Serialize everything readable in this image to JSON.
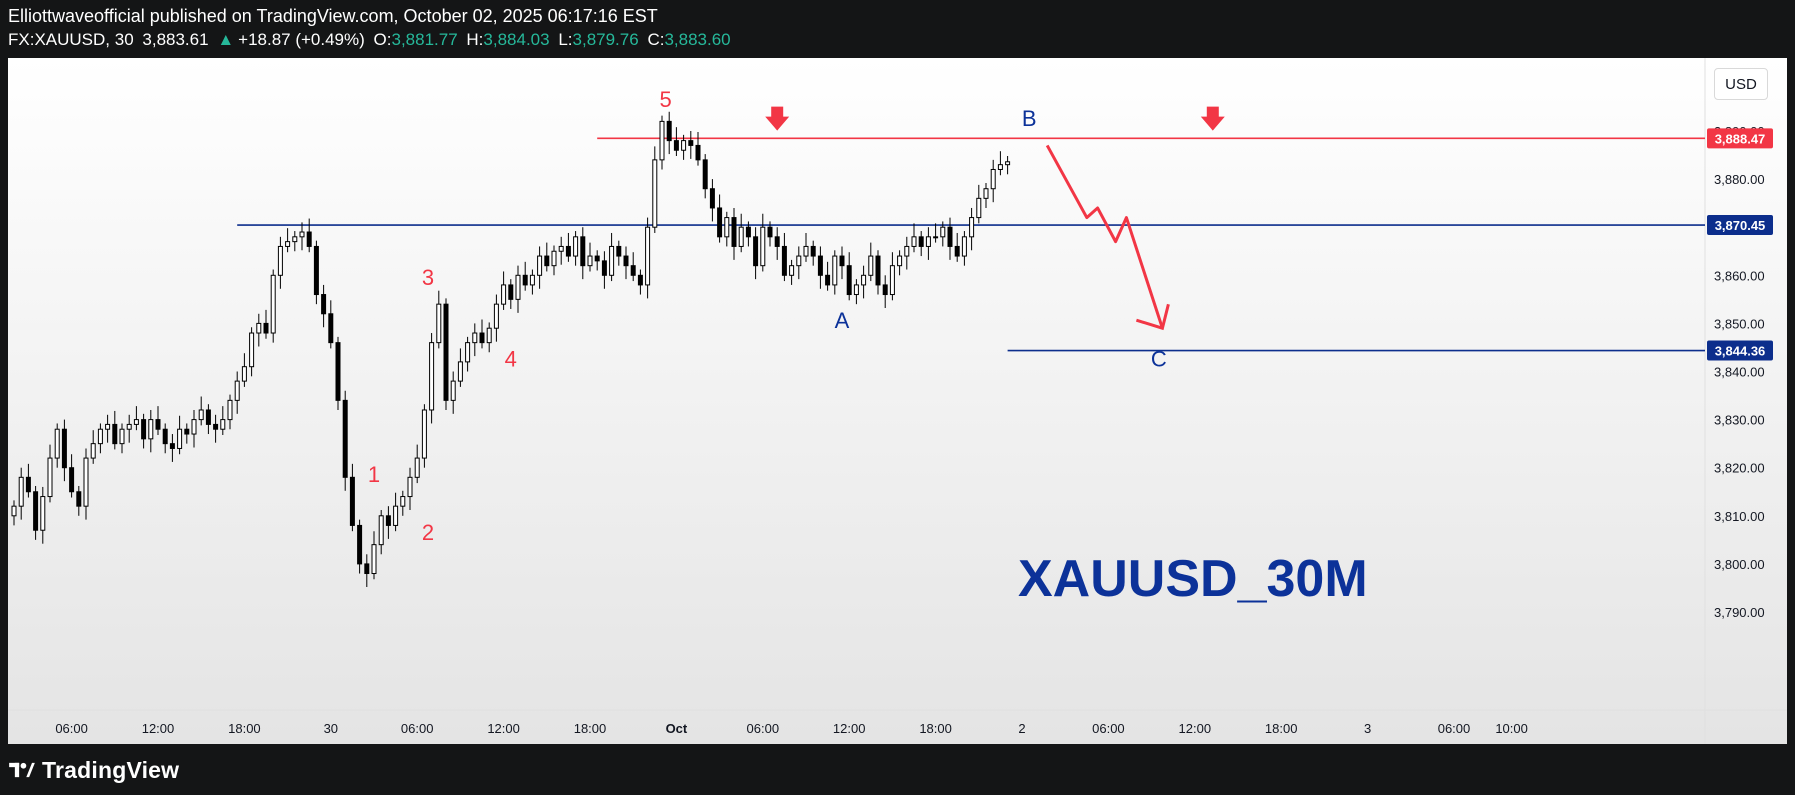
{
  "header": {
    "published_line": "Elliottwaveofficial published on TradingView.com, October 02, 2025 06:17:16 EST",
    "symbol": "FX:XAUUSD, 30",
    "last": "3,883.61",
    "arrow": "▲",
    "change": "+18.87 (+0.49%)",
    "o_label": "O:",
    "o": "3,881.77",
    "h_label": "H:",
    "h": "3,884.03",
    "l_label": "L:",
    "l": "3,879.76",
    "c_label": "C:",
    "c": "3,883.60"
  },
  "currency_button": "USD",
  "footer": {
    "brand": "TradingView"
  },
  "colors": {
    "up": "#26b89a",
    "wave_red": "#f23645",
    "wave_blue": "#0c3299",
    "line_blue": "#0c2e8c",
    "candle_body_down": "#000000",
    "candle_body_up": "#ffffff"
  },
  "chart_data": {
    "type": "candlestick",
    "title": "XAUUSD_30M",
    "ylim": [
      3788,
      3898
    ],
    "y_ticks": [
      {
        "value": 3790,
        "label": "3,790.00"
      },
      {
        "value": 3800,
        "label": "3,800.00"
      },
      {
        "value": 3810,
        "label": "3,810.00"
      },
      {
        "value": 3820,
        "label": "3,820.00"
      },
      {
        "value": 3830,
        "label": "3,830.00"
      },
      {
        "value": 3840,
        "label": "3,840.00"
      },
      {
        "value": 3850,
        "label": "3,850.00"
      },
      {
        "value": 3860,
        "label": "3,860.00"
      },
      {
        "value": 3870,
        "label": "3,870.00"
      },
      {
        "value": 3880,
        "label": "3,880.00"
      },
      {
        "value": 3890,
        "label": "3,890.00"
      }
    ],
    "x_labels": [
      {
        "label": "06:00",
        "bar": 8
      },
      {
        "label": "12:00",
        "bar": 20
      },
      {
        "label": "18:00",
        "bar": 32
      },
      {
        "label": "30",
        "bar": 44
      },
      {
        "label": "06:00",
        "bar": 56
      },
      {
        "label": "12:00",
        "bar": 68
      },
      {
        "label": "18:00",
        "bar": 80
      },
      {
        "label": "Oct",
        "bar": 92,
        "bold": true
      },
      {
        "label": "06:00",
        "bar": 104
      },
      {
        "label": "12:00",
        "bar": 116
      },
      {
        "label": "18:00",
        "bar": 128
      },
      {
        "label": "2",
        "bar": 140
      },
      {
        "label": "06:00",
        "bar": 152
      },
      {
        "label": "12:00",
        "bar": 164
      },
      {
        "label": "18:00",
        "bar": 176
      },
      {
        "label": "3",
        "bar": 188
      },
      {
        "label": "06:00",
        "bar": 200
      },
      {
        "label": "10:00",
        "bar": 208
      }
    ],
    "closes": [
      3812,
      3818,
      3815,
      3807,
      3814,
      3822,
      3828,
      3820,
      3815,
      3812,
      3822,
      3825,
      3828,
      3829,
      3825,
      3828,
      3829,
      3830,
      3826,
      3830,
      3828,
      3825,
      3824,
      3828,
      3827,
      3830,
      3832,
      3829,
      3828,
      3830,
      3834,
      3838,
      3841,
      3848,
      3850,
      3848,
      3860,
      3866,
      3867,
      3868,
      3869,
      3866,
      3856,
      3852,
      3846,
      3834,
      3818,
      3808,
      3800,
      3798,
      3804,
      3810,
      3808,
      3812,
      3814,
      3818,
      3822,
      3832,
      3846,
      3854,
      3834,
      3838,
      3842,
      3846,
      3848,
      3846,
      3849,
      3854,
      3858,
      3855,
      3860,
      3858,
      3860,
      3864,
      3862,
      3865,
      3866,
      3864,
      3868,
      3862,
      3864,
      3863,
      3860,
      3866,
      3864,
      3862,
      3860,
      3858,
      3870,
      3884,
      3892,
      3888,
      3886,
      3888,
      3887,
      3884,
      3878,
      3874,
      3868,
      3872,
      3866,
      3870,
      3868,
      3862,
      3870,
      3868,
      3866,
      3860,
      3862,
      3864,
      3866,
      3864,
      3860,
      3858,
      3864,
      3862,
      3856,
      3858,
      3860,
      3864,
      3858,
      3856,
      3862,
      3864,
      3866,
      3868,
      3866,
      3868,
      3868,
      3870,
      3866,
      3864,
      3868,
      3872,
      3876,
      3878,
      3882,
      3883,
      3883.6
    ],
    "labels": [
      {
        "text": "5",
        "color": "red",
        "price": 3895,
        "bar": 90.5
      },
      {
        "text": "3",
        "color": "red",
        "price": 3858,
        "bar": 57.5
      },
      {
        "text": "4",
        "color": "red",
        "price": 3841,
        "bar": 69
      },
      {
        "text": "1",
        "color": "red",
        "price": 3817,
        "bar": 50
      },
      {
        "text": "2",
        "color": "red",
        "price": 3805,
        "bar": 57.5
      },
      {
        "text": "A",
        "color": "blue",
        "price": 3849,
        "bar": 115
      },
      {
        "text": "B",
        "color": "blue",
        "price": 3891,
        "bar": 141
      },
      {
        "text": "C",
        "color": "blue",
        "price": 3841,
        "bar": 159
      }
    ],
    "horizontal_lines": [
      {
        "price": 3888.47,
        "label": "3,888.47",
        "color": "red",
        "from_bar": 81
      },
      {
        "price": 3870.45,
        "label": "3,870.45",
        "color": "blue",
        "from_bar": 31
      },
      {
        "price": 3844.36,
        "label": "3,844.36",
        "color": "blue",
        "from_bar": 138
      }
    ],
    "arrows_down": [
      {
        "bar": 106,
        "price": 3893
      },
      {
        "bar": 166.5,
        "price": 3893
      }
    ],
    "projection_path": [
      {
        "bar": 143.5,
        "price": 3887
      },
      {
        "bar": 149,
        "price": 3872
      },
      {
        "bar": 150.5,
        "price": 3874
      },
      {
        "bar": 153,
        "price": 3867
      },
      {
        "bar": 154.5,
        "price": 3872
      },
      {
        "bar": 159.5,
        "price": 3849
      }
    ]
  }
}
